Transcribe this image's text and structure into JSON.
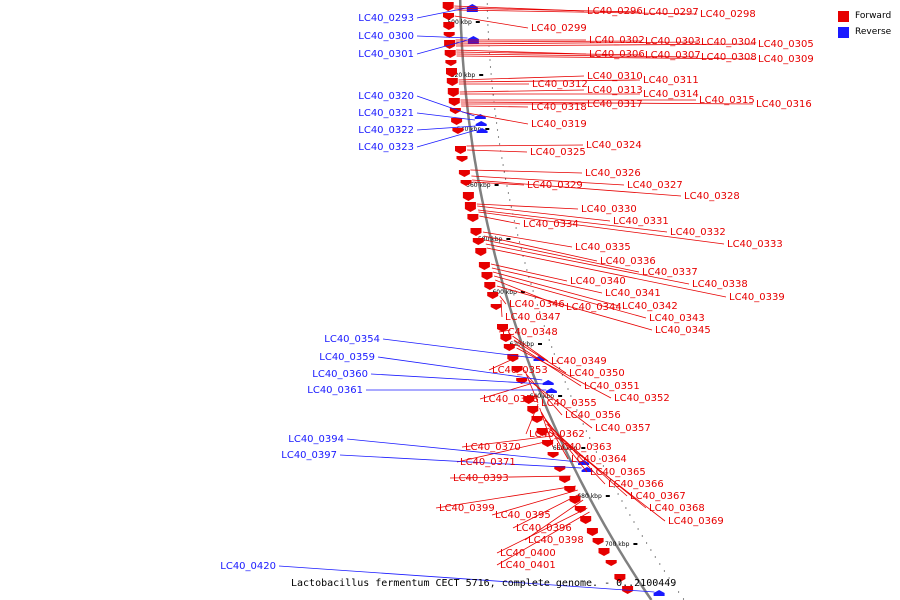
{
  "title": "Lactobacillus fermentum CECT 5716, complete genome. - 0..2100449",
  "legend": {
    "forward_label": "Forward",
    "reverse_label": "Reverse",
    "forward_color": "#e60000",
    "reverse_color": "#1a1aff"
  },
  "colors": {
    "backbone": "#808080",
    "forward": "#e60000",
    "reverse": "#1a1aff"
  },
  "axis_ticks": [
    "500 kbp",
    "520 kbp",
    "540 kbp",
    "560 kbp",
    "580 kbp",
    "600 kbp",
    "620 kbp",
    "640 kbp",
    "660 kbp",
    "680 kbp",
    "700 kbp"
  ],
  "reverse_genes": [
    "LC40_0293",
    "LC40_0300",
    "LC40_0301",
    "LC40_0320",
    "LC40_0321",
    "LC40_0322",
    "LC40_0323",
    "LC40_0354",
    "LC40_0359",
    "LC40_0360",
    "LC40_0361",
    "LC40_0394",
    "LC40_0397",
    "LC40_0420"
  ],
  "forward_genes": [
    "LC40_0296",
    "LC40_0297",
    "LC40_0298",
    "LC40_0299",
    "LC40_0302",
    "LC40_0303",
    "LC40_0304",
    "LC40_0305",
    "LC40_0306",
    "LC40_0307",
    "LC40_0308",
    "LC40_0309",
    "LC40_0310",
    "LC40_0311",
    "LC40_0312",
    "LC40_0313",
    "LC40_0314",
    "LC40_0315",
    "LC40_0316",
    "LC40_0317",
    "LC40_0318",
    "LC40_0319",
    "LC40_0324",
    "LC40_0325",
    "LC40_0326",
    "LC40_0327",
    "LC40_0328",
    "LC40_0329",
    "LC40_0330",
    "LC40_0331",
    "LC40_0332",
    "LC40_0333",
    "LC40_0334",
    "LC40_0335",
    "LC40_0336",
    "LC40_0337",
    "LC40_0338",
    "LC40_0339",
    "LC40_0340",
    "LC40_0341",
    "LC40_0342",
    "LC40_0343",
    "LC40_0344",
    "LC40_0345",
    "LC40_0346",
    "LC40_0347",
    "LC40_0348",
    "LC40_0349",
    "LC40_0350",
    "LC40_0351",
    "LC40_0352",
    "LC40_0353",
    "LC40_0355",
    "LC40_0356",
    "LC40_0357",
    "LC40_0358",
    "LC40_0362",
    "LC40_0363",
    "LC40_0364",
    "LC40_0365",
    "LC40_0366",
    "LC40_0367",
    "LC40_0368",
    "LC40_0369",
    "LC40_0370",
    "LC40_0371",
    "LC40_0393",
    "LC40_0395",
    "LC40_0396",
    "LC40_0398",
    "LC40_0399",
    "LC40_0400",
    "LC40_0401"
  ]
}
